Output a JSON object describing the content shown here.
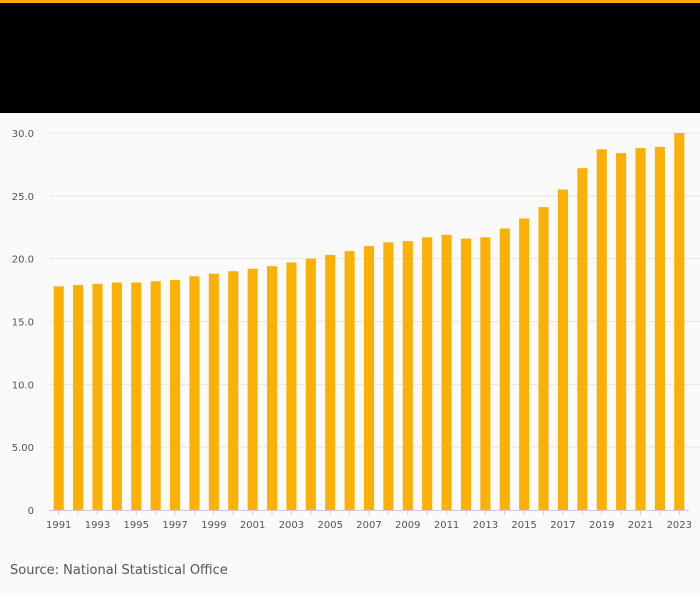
{
  "colors": {
    "accent": "#fab005",
    "header_bg": "#000000",
    "bar": "#fab005",
    "grid": "#e6e6e6",
    "axis_text": "#555555"
  },
  "source": "Source: National Statistical Office",
  "chart_data": {
    "type": "bar",
    "title": "",
    "xlabel": "",
    "ylabel": "",
    "ylim": [
      0,
      30
    ],
    "y_ticks": [
      0,
      5,
      10,
      15,
      20,
      25,
      30
    ],
    "y_tick_labels": [
      "0",
      "5.00",
      "10.0",
      "15.0",
      "20.0",
      "25.0",
      "30.0"
    ],
    "grid": true,
    "categories": [
      "1991",
      "1992",
      "1993",
      "1994",
      "1995",
      "1996",
      "1997",
      "1998",
      "1999",
      "2000",
      "2001",
      "2002",
      "2003",
      "2004",
      "2005",
      "2006",
      "2007",
      "2008",
      "2009",
      "2010",
      "2011",
      "2012",
      "2013",
      "2014",
      "2015",
      "2016",
      "2017",
      "2018",
      "2019",
      "2020",
      "2021",
      "2022",
      "2023"
    ],
    "x_tick_labels": [
      "1991",
      "1993",
      "1995",
      "1997",
      "1999",
      "2001",
      "2003",
      "2005",
      "2007",
      "2009",
      "2011",
      "2013",
      "2015",
      "2017",
      "2019",
      "2021",
      "2023"
    ],
    "series": [
      {
        "name": "Value",
        "values": [
          17.8,
          17.9,
          18.0,
          18.1,
          18.1,
          18.2,
          18.3,
          18.6,
          18.8,
          19.0,
          19.2,
          19.4,
          19.7,
          20.0,
          20.3,
          20.6,
          21.0,
          21.3,
          21.4,
          21.7,
          21.9,
          21.6,
          21.7,
          22.4,
          23.2,
          24.1,
          25.5,
          27.2,
          28.7,
          28.4,
          28.8,
          28.9,
          30.0
        ]
      }
    ]
  }
}
